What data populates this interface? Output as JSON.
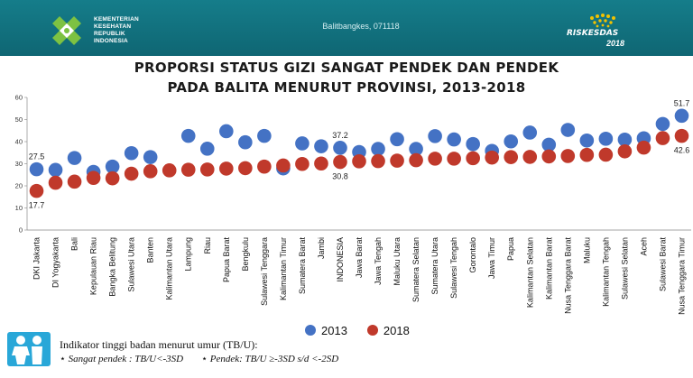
{
  "header": {
    "logo_lines": [
      "KEMENTERIAN",
      "KESEHATAN",
      "REPUBLIK",
      "INDONESIA"
    ],
    "center_text": "Balitbangkes, 071118",
    "brand": "RISKESDAS",
    "brand_year": "2018"
  },
  "title_line1": "PROPORSI STATUS GIZI SANGAT PENDEK DAN PENDEK",
  "title_line2": "PADA BALITA MENURUT PROVINSI, 2013-2018",
  "legend": {
    "s2013": "2013",
    "s2018": "2018"
  },
  "colors": {
    "s2013": "#4472c4",
    "s2018": "#c0392b",
    "header": "#137481"
  },
  "note": {
    "title": "Indikator tinggi badan menurut umur (TB/U):",
    "item1": "Sangat pendek : TB/U<-3SD",
    "item2": "Pendek: TB/U ≥-3SD s/d <-2SD"
  },
  "chart_data": {
    "type": "scatter",
    "ylim": [
      0,
      60
    ],
    "yticks": [
      0,
      10,
      20,
      30,
      40,
      50,
      60
    ],
    "categories": [
      "DKI Jakarta",
      "DI Yogyakarta",
      "Bali",
      "Kepulauan Riau",
      "Bangka Belitung",
      "Sulawesi Utara",
      "Banten",
      "Kalimantan Utara",
      "Lampung",
      "Riau",
      "Papua Barat",
      "Bengkulu",
      "Sulawesi Tenggara",
      "Kalimantan Timur",
      "Sumatera Barat",
      "Jambi",
      "INDONESIA",
      "Jawa Barat",
      "Jawa Tengah",
      "Maluku Utara",
      "Sumatera Selatan",
      "Sumatera Utara",
      "Sulawesi Tengah",
      "Gorontalo",
      "Jawa Timur",
      "Papua",
      "Kalimantan Selatan",
      "Kalimantan Barat",
      "Nusa Tenggara Barat",
      "Maluku",
      "Kalimantan Tengah",
      "Sulawesi Selatan",
      "Aceh",
      "Sulawesi Barat",
      "Nusa Tenggara Timur"
    ],
    "series": [
      {
        "name": "2013",
        "values": [
          27.5,
          27.2,
          32.6,
          26.3,
          28.7,
          34.8,
          33.0,
          null,
          42.6,
          36.8,
          44.7,
          39.7,
          42.6,
          27.9,
          39.2,
          37.9,
          37.2,
          35.3,
          36.7,
          41.1,
          36.7,
          42.5,
          41.0,
          38.9,
          35.8,
          40.1,
          44.1,
          38.6,
          45.3,
          40.5,
          41.3,
          40.9,
          41.5,
          48.0,
          51.7
        ]
      },
      {
        "name": "2018",
        "values": [
          17.7,
          21.4,
          21.9,
          23.6,
          23.4,
          25.5,
          26.6,
          27.0,
          27.3,
          27.4,
          27.8,
          28.0,
          28.7,
          29.2,
          29.9,
          30.1,
          30.8,
          31.1,
          31.2,
          31.4,
          31.6,
          32.3,
          32.3,
          32.5,
          32.8,
          33.0,
          33.1,
          33.3,
          33.5,
          34.0,
          34.1,
          35.6,
          37.3,
          41.6,
          42.6
        ]
      }
    ],
    "labels": [
      {
        "text": "27.5",
        "series": 0,
        "index": 0,
        "pos": "above"
      },
      {
        "text": "17.7",
        "series": 1,
        "index": 0,
        "pos": "below"
      },
      {
        "text": "37.2",
        "series": 0,
        "index": 16,
        "pos": "above"
      },
      {
        "text": "30.8",
        "series": 1,
        "index": 16,
        "pos": "below"
      },
      {
        "text": "51.7",
        "series": 0,
        "index": 34,
        "pos": "above"
      },
      {
        "text": "42.6",
        "series": 1,
        "index": 34,
        "pos": "below"
      }
    ]
  }
}
